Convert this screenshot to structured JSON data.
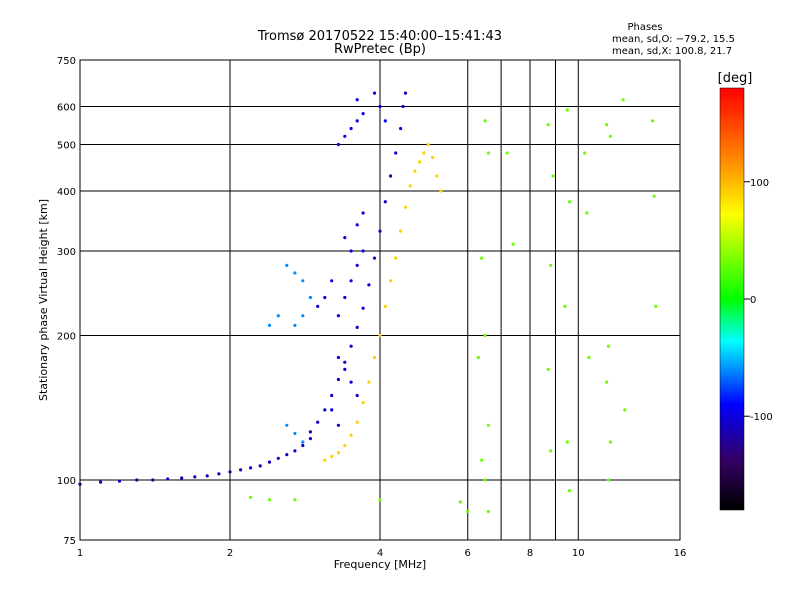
{
  "chart_data": {
    "type": "scatter",
    "title": "Tromsø 20170522 15:40:00–15:41:43",
    "subtitle": "RwPretec (Bp)",
    "xlabel": "Frequency [MHz]",
    "ylabel": "Stationary phase Virtual Height [km]",
    "x_scale": "log",
    "y_scale": "log",
    "xlim": [
      1,
      16
    ],
    "ylim": [
      75,
      750
    ],
    "x_ticks": [
      1,
      2,
      4,
      6,
      8,
      10,
      16
    ],
    "x_minor_ticks": [
      7,
      9
    ],
    "y_ticks": [
      75,
      100,
      200,
      300,
      400,
      500,
      600,
      750
    ],
    "grid": true,
    "stats": {
      "heading": "Phases",
      "line_o": "mean, sd,O: −79.2, 15.5",
      "line_x": "mean, sd,X: 100.8, 21.7"
    },
    "colorbar": {
      "label": "[deg]",
      "range": [
        -180,
        180
      ],
      "ticks": [
        100,
        0,
        -100
      ]
    },
    "traces": [
      {
        "desc": "low E-trace",
        "phase": -110,
        "points": [
          [
            1.0,
            98
          ],
          [
            1.1,
            99
          ],
          [
            1.2,
            99.5
          ],
          [
            1.3,
            100
          ],
          [
            1.4,
            100
          ],
          [
            1.5,
            100.5
          ],
          [
            1.6,
            101
          ],
          [
            1.7,
            101.5
          ],
          [
            1.8,
            102
          ],
          [
            1.9,
            103
          ],
          [
            2.0,
            104
          ],
          [
            2.1,
            105
          ],
          [
            2.2,
            106
          ],
          [
            2.3,
            107
          ],
          [
            2.4,
            109
          ],
          [
            2.5,
            111
          ],
          [
            2.6,
            113
          ],
          [
            2.7,
            115
          ],
          [
            2.8,
            118
          ],
          [
            2.9,
            122
          ]
        ]
      },
      {
        "desc": "O-mode F trace lower",
        "phase": -105,
        "points": [
          [
            2.9,
            126
          ],
          [
            3.0,
            132
          ],
          [
            3.1,
            140
          ],
          [
            3.2,
            150
          ],
          [
            3.3,
            162
          ],
          [
            3.4,
            176
          ],
          [
            3.5,
            190
          ],
          [
            3.6,
            208
          ],
          [
            3.7,
            228
          ],
          [
            3.8,
            255
          ],
          [
            3.9,
            290
          ],
          [
            4.0,
            330
          ],
          [
            4.1,
            380
          ],
          [
            4.2,
            430
          ],
          [
            4.3,
            480
          ],
          [
            4.4,
            540
          ],
          [
            4.45,
            600
          ],
          [
            4.5,
            640
          ]
        ]
      },
      {
        "desc": "O-mode F cluster",
        "phase": -100,
        "points": [
          [
            3.3,
            220
          ],
          [
            3.4,
            240
          ],
          [
            3.5,
            260
          ],
          [
            3.6,
            280
          ],
          [
            3.7,
            300
          ],
          [
            3.3,
            180
          ],
          [
            3.4,
            170
          ],
          [
            3.5,
            160
          ],
          [
            3.6,
            150
          ],
          [
            3.2,
            140
          ],
          [
            3.3,
            130
          ],
          [
            3.5,
            300
          ],
          [
            3.6,
            340
          ],
          [
            3.7,
            360
          ],
          [
            3.4,
            320
          ],
          [
            3.2,
            260
          ],
          [
            3.1,
            240
          ],
          [
            3.0,
            230
          ]
        ]
      },
      {
        "desc": "upper oblique trace",
        "phase": -95,
        "points": [
          [
            3.3,
            500
          ],
          [
            3.4,
            520
          ],
          [
            3.5,
            540
          ],
          [
            3.6,
            560
          ],
          [
            3.7,
            580
          ],
          [
            3.6,
            620
          ],
          [
            3.9,
            640
          ],
          [
            4.0,
            600
          ],
          [
            4.1,
            560
          ]
        ]
      },
      {
        "desc": "cyan patches",
        "phase": -60,
        "points": [
          [
            2.6,
            280
          ],
          [
            2.7,
            270
          ],
          [
            2.8,
            260
          ],
          [
            2.9,
            240
          ],
          [
            2.8,
            220
          ],
          [
            2.7,
            210
          ],
          [
            2.5,
            220
          ],
          [
            2.4,
            210
          ],
          [
            2.6,
            130
          ],
          [
            2.7,
            125
          ],
          [
            2.8,
            120
          ]
        ]
      },
      {
        "desc": "X-mode trace",
        "phase": 90,
        "points": [
          [
            3.1,
            110
          ],
          [
            3.2,
            112
          ],
          [
            3.3,
            114
          ],
          [
            3.4,
            118
          ],
          [
            3.5,
            124
          ],
          [
            3.6,
            132
          ],
          [
            3.7,
            145
          ],
          [
            3.8,
            160
          ],
          [
            3.9,
            180
          ],
          [
            4.0,
            200
          ],
          [
            4.1,
            230
          ],
          [
            4.2,
            260
          ],
          [
            4.3,
            290
          ],
          [
            4.4,
            330
          ],
          [
            4.5,
            370
          ],
          [
            4.6,
            410
          ],
          [
            4.7,
            440
          ],
          [
            4.8,
            460
          ],
          [
            4.9,
            480
          ],
          [
            5.0,
            500
          ],
          [
            5.1,
            470
          ],
          [
            5.2,
            430
          ],
          [
            5.3,
            400
          ]
        ]
      },
      {
        "desc": "scattered interference",
        "phase": 30,
        "points": [
          [
            6.5,
            560
          ],
          [
            6.6,
            480
          ],
          [
            6.4,
            290
          ],
          [
            6.5,
            200
          ],
          [
            6.3,
            180
          ],
          [
            6.6,
            130
          ],
          [
            6.4,
            110
          ],
          [
            6.5,
            100
          ],
          [
            7.2,
            480
          ],
          [
            7.4,
            310
          ],
          [
            8.7,
            550
          ],
          [
            8.9,
            430
          ],
          [
            8.8,
            280
          ],
          [
            8.7,
            170
          ],
          [
            8.8,
            115
          ],
          [
            9.5,
            590
          ],
          [
            9.6,
            380
          ],
          [
            9.4,
            230
          ],
          [
            9.5,
            120
          ],
          [
            9.6,
            95
          ],
          [
            10.3,
            480
          ],
          [
            10.4,
            360
          ],
          [
            10.5,
            180
          ],
          [
            11.4,
            550
          ],
          [
            11.6,
            520
          ],
          [
            11.5,
            190
          ],
          [
            11.4,
            160
          ],
          [
            11.6,
            120
          ],
          [
            11.5,
            100
          ],
          [
            12.3,
            620
          ],
          [
            12.4,
            140
          ],
          [
            14.1,
            560
          ],
          [
            14.2,
            390
          ],
          [
            14.3,
            230
          ],
          [
            2.2,
            92
          ],
          [
            2.4,
            91
          ],
          [
            2.7,
            91
          ],
          [
            4.0,
            91
          ],
          [
            5.8,
            90
          ],
          [
            6.0,
            86
          ],
          [
            6.6,
            86
          ]
        ]
      }
    ]
  }
}
